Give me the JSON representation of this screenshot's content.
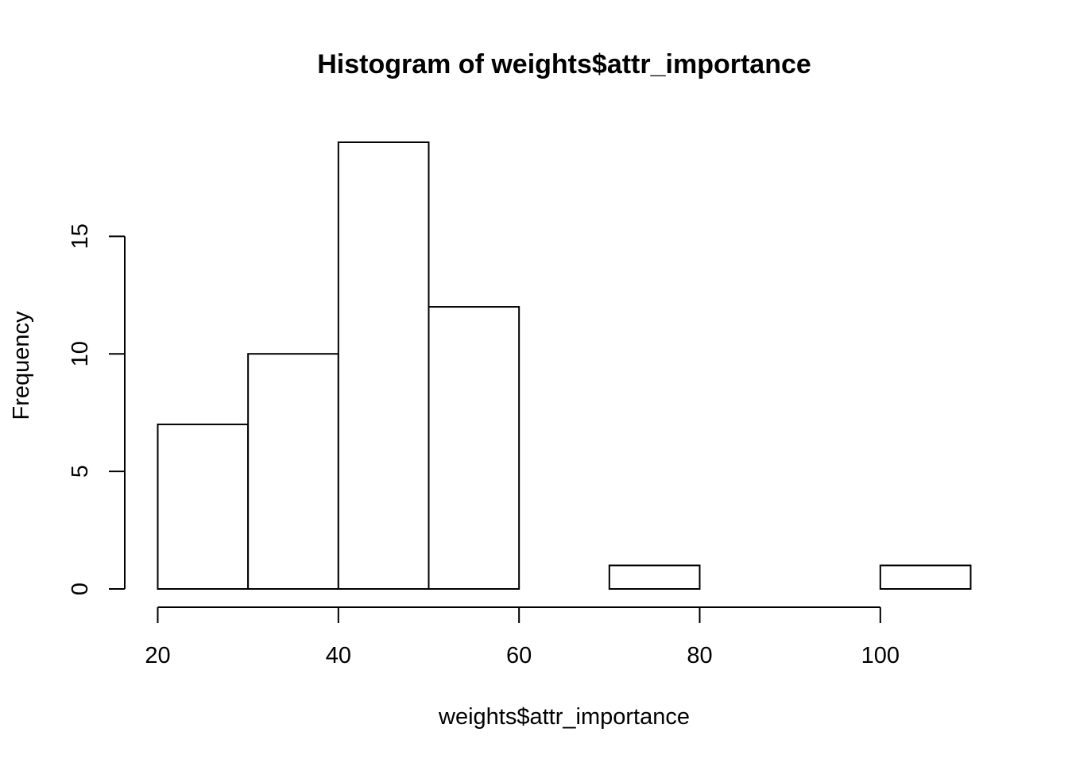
{
  "chart_data": {
    "type": "bar",
    "title": "Histogram of weights$attr_importance",
    "xlabel": "weights$attr_importance",
    "ylabel": "Frequency",
    "bins": [
      {
        "x0": 20,
        "x1": 30,
        "count": 7
      },
      {
        "x0": 30,
        "x1": 40,
        "count": 10
      },
      {
        "x0": 40,
        "x1": 50,
        "count": 19
      },
      {
        "x0": 50,
        "x1": 60,
        "count": 12
      },
      {
        "x0": 60,
        "x1": 70,
        "count": 0
      },
      {
        "x0": 70,
        "x1": 80,
        "count": 1
      },
      {
        "x0": 80,
        "x1": 90,
        "count": 0
      },
      {
        "x0": 90,
        "x1": 100,
        "count": 0
      },
      {
        "x0": 100,
        "x1": 110,
        "count": 1
      }
    ],
    "xticks": [
      20,
      40,
      60,
      80,
      100
    ],
    "yticks": [
      0,
      5,
      10,
      15
    ],
    "xlim": [
      20,
      110
    ],
    "ylim": [
      0,
      19
    ],
    "grid": false,
    "colors": {
      "bar_fill": "#ffffff",
      "bar_stroke": "#000000"
    }
  }
}
